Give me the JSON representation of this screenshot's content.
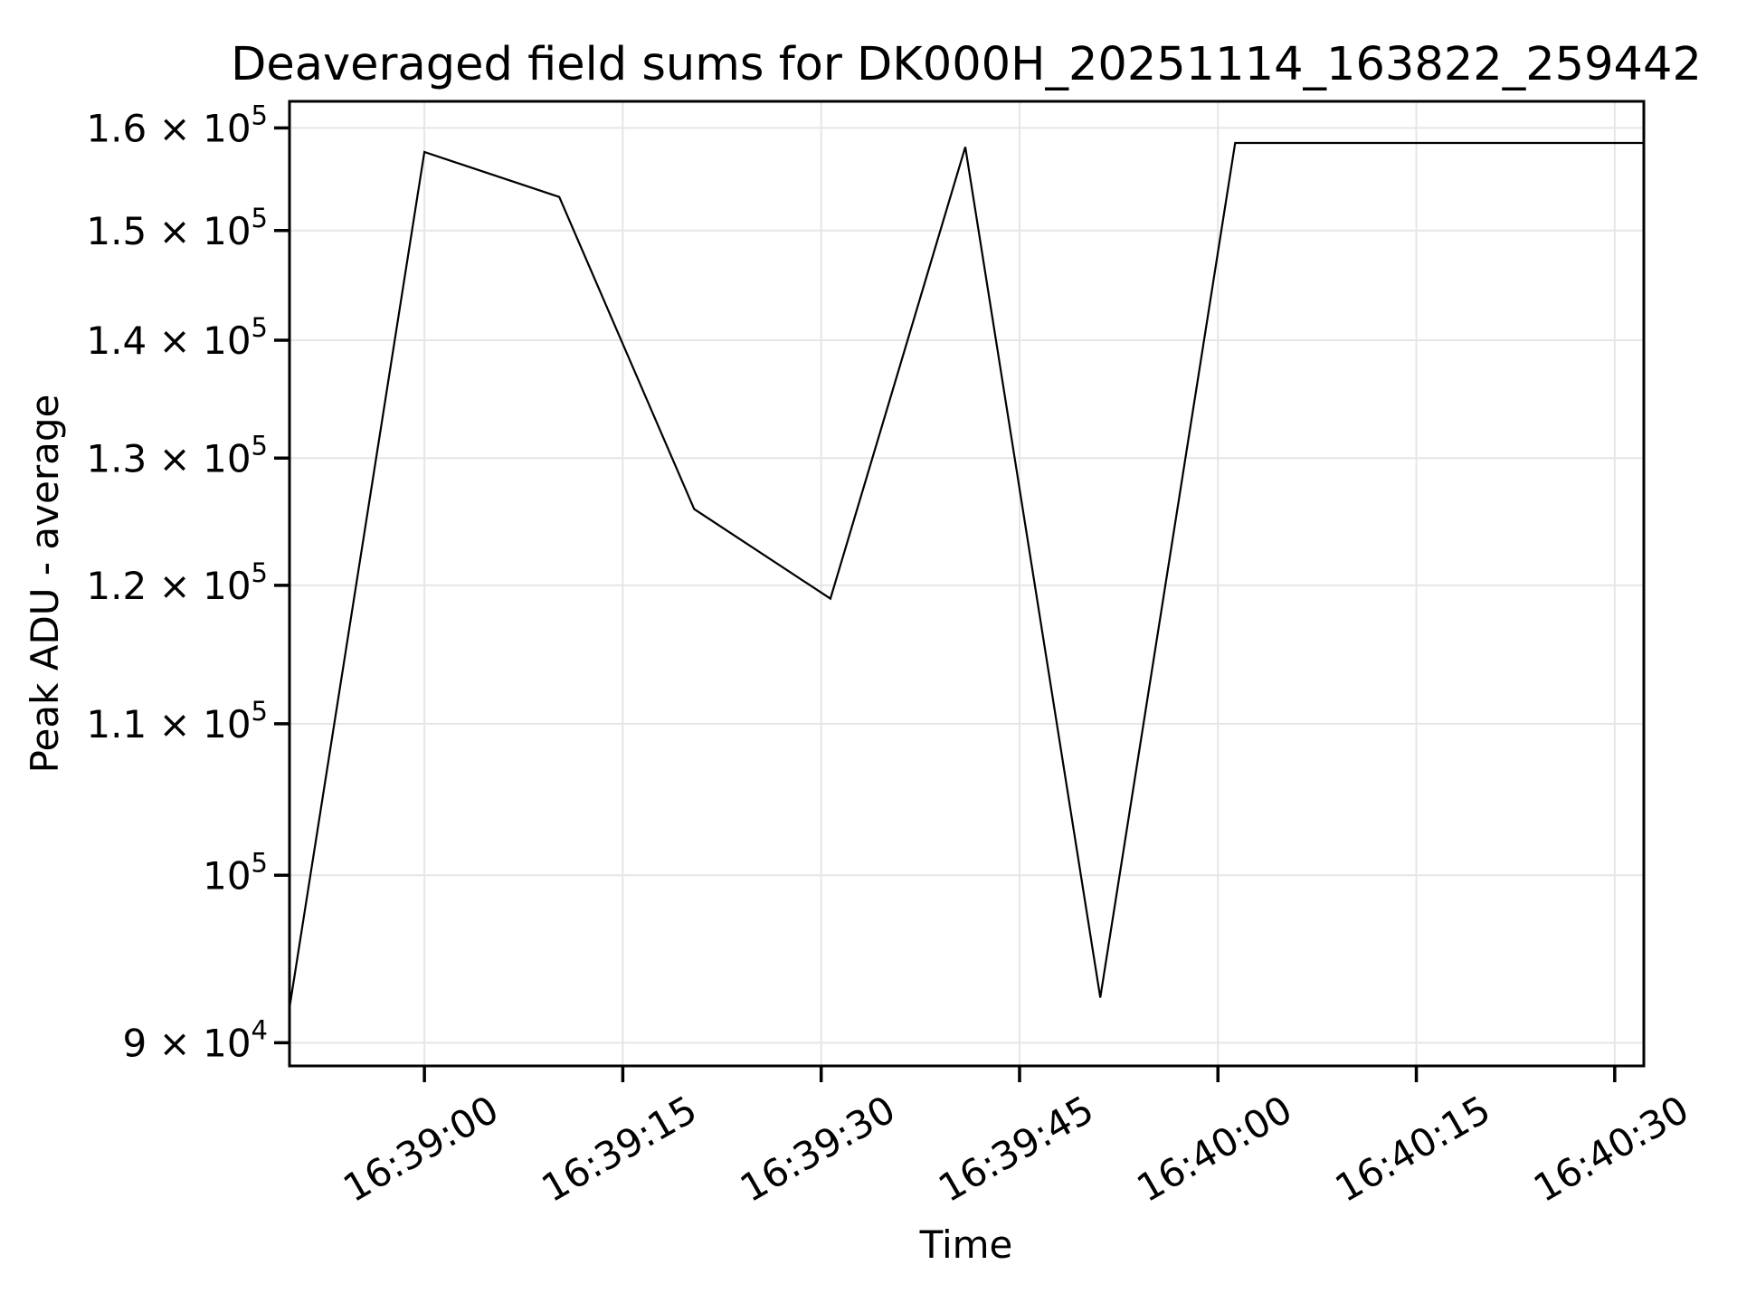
{
  "chart_data": {
    "type": "line",
    "title": "Deaveraged field sums for DK000H_20251114_163822_259442",
    "xlabel": "Time",
    "ylabel": "Peak ADU - average",
    "y_scale": "log",
    "grid": true,
    "legend": "none",
    "line_color": "#000000",
    "grid_color": "#e6e6e6",
    "background_color": "#ffffff",
    "xlim_seconds_rel_163900": [
      -10.2,
      92.2
    ],
    "ylim": [
      88700,
      162700
    ],
    "x_ticks": [
      {
        "label": "16:39:00",
        "t": 0
      },
      {
        "label": "16:39:15",
        "t": 15
      },
      {
        "label": "16:39:30",
        "t": 30
      },
      {
        "label": "16:39:45",
        "t": 45
      },
      {
        "label": "16:40:00",
        "t": 60
      },
      {
        "label": "16:40:15",
        "t": 75
      },
      {
        "label": "16:40:30",
        "t": 90
      }
    ],
    "x_tick_rotation_deg": 30,
    "y_ticks": [
      {
        "value": 90000,
        "base": "9 × 10",
        "exp": "4"
      },
      {
        "value": 100000,
        "base": "10",
        "exp": "5"
      },
      {
        "value": 110000,
        "base": "1.1 × 10",
        "exp": "5"
      },
      {
        "value": 120000,
        "base": "1.2 × 10",
        "exp": "5"
      },
      {
        "value": 130000,
        "base": "1.3 × 10",
        "exp": "5"
      },
      {
        "value": 140000,
        "base": "1.4 × 10",
        "exp": "5"
      },
      {
        "value": 150000,
        "base": "1.5 × 10",
        "exp": "5"
      },
      {
        "value": 160000,
        "base": "1.6 × 10",
        "exp": "5"
      }
    ],
    "points": [
      {
        "time": "16:38:50",
        "t": -10.2,
        "value": 92000
      },
      {
        "time": "16:39:00",
        "t": 0.0,
        "value": 157600
      },
      {
        "time": "16:39:10",
        "t": 10.2,
        "value": 153200
      },
      {
        "time": "16:39:20",
        "t": 20.4,
        "value": 125900
      },
      {
        "time": "16:39:31",
        "t": 30.7,
        "value": 119000
      },
      {
        "time": "16:39:41",
        "t": 40.9,
        "value": 158100
      },
      {
        "time": "16:39:51",
        "t": 51.1,
        "value": 92600
      },
      {
        "time": "16:40:01",
        "t": 61.3,
        "value": 158500
      },
      {
        "time": "16:40:32",
        "t": 92.2,
        "value": 158500
      }
    ]
  }
}
